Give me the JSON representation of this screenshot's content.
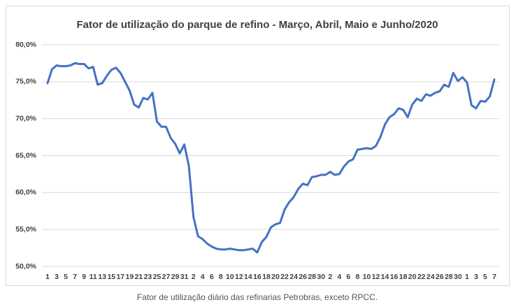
{
  "chart_data": {
    "type": "line",
    "title": "Fator de utilização do parque de refino - Março, Abril, Maio e Junho/2020",
    "caption": "Fator de utilização diário das refinarias Petrobras, exceto RPCC.",
    "categories": [
      "1",
      null,
      "3",
      null,
      "5",
      null,
      "7",
      null,
      "9",
      null,
      "11",
      null,
      "13",
      null,
      "15",
      null,
      "17",
      null,
      "19",
      null,
      "21",
      null,
      "23",
      null,
      "25",
      null,
      "27",
      null,
      "29",
      null,
      "31",
      null,
      "2",
      null,
      "4",
      null,
      "6",
      null,
      "8",
      null,
      "10",
      null,
      "12",
      null,
      "14",
      null,
      "16",
      null,
      "18",
      null,
      "20",
      null,
      "22",
      null,
      "24",
      null,
      "26",
      null,
      "28",
      null,
      "30",
      null,
      "2",
      null,
      "4",
      null,
      "6",
      null,
      "8",
      null,
      "10",
      null,
      "12",
      null,
      "14",
      null,
      "16",
      null,
      "18",
      null,
      "20",
      null,
      "22",
      null,
      "24",
      null,
      "26",
      null,
      "28",
      null,
      "30",
      null,
      "1",
      null,
      "3",
      null,
      "5",
      null,
      "7"
    ],
    "values": [
      74.8,
      76.7,
      77.2,
      77.1,
      77.1,
      77.2,
      77.5,
      77.4,
      77.4,
      76.8,
      77.0,
      74.6,
      74.8,
      75.8,
      76.6,
      76.9,
      76.2,
      75.0,
      73.8,
      71.9,
      71.5,
      72.8,
      72.6,
      73.5,
      69.6,
      68.9,
      68.9,
      67.4,
      66.6,
      65.3,
      66.5,
      63.6,
      56.7,
      54.1,
      53.7,
      53.1,
      52.7,
      52.4,
      52.3,
      52.3,
      52.4,
      52.3,
      52.2,
      52.2,
      52.3,
      52.4,
      51.9,
      53.3,
      54.0,
      55.3,
      55.7,
      55.9,
      57.7,
      58.7,
      59.4,
      60.5,
      61.2,
      61.0,
      62.1,
      62.2,
      62.4,
      62.4,
      62.8,
      62.4,
      62.5,
      63.5,
      64.2,
      64.5,
      65.8,
      65.9,
      66.0,
      65.9,
      66.3,
      67.5,
      69.2,
      70.2,
      70.6,
      71.4,
      71.2,
      70.2,
      71.9,
      72.7,
      72.4,
      73.3,
      73.1,
      73.5,
      73.7,
      74.6,
      74.3,
      76.2,
      75.1,
      75.6,
      74.9,
      71.8,
      71.4,
      72.4,
      72.3,
      73.0,
      75.3
    ],
    "color": "#4472c4",
    "ylim": [
      50,
      80
    ],
    "yticks": [
      {
        "value": 50,
        "label": "50,0%"
      },
      {
        "value": 55,
        "label": "55,0%"
      },
      {
        "value": 60,
        "label": "60,0%"
      },
      {
        "value": 65,
        "label": "65,0%"
      },
      {
        "value": 70,
        "label": "70,0%"
      },
      {
        "value": 75,
        "label": "75,0%"
      },
      {
        "value": 80,
        "label": "80,0%"
      }
    ],
    "grid": true
  }
}
